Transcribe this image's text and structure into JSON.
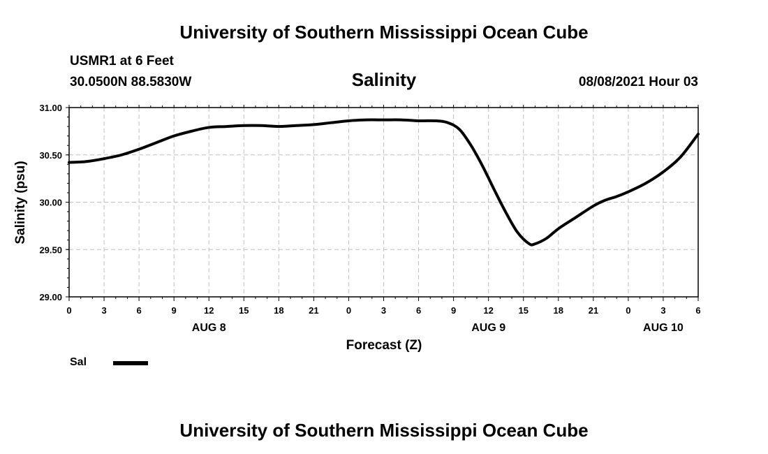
{
  "header": {
    "title": "University of Southern Mississippi Ocean Cube",
    "station": "USMR1 at 6 Feet",
    "coords": "30.0500N  88.5830W",
    "date": "08/08/2021 Hour 03"
  },
  "footer": {
    "title": "University of Southern Mississippi Ocean Cube"
  },
  "colors": {
    "line": "#000000",
    "grid": "#c0c0c0"
  },
  "chart_data": {
    "type": "line",
    "title": "Salinity",
    "xlabel": "Forecast (Z)",
    "ylabel": "Salinity (psu)",
    "ylim": [
      29.0,
      31.0
    ],
    "xlim": [
      0,
      54
    ],
    "grid": true,
    "y_ticks": [
      29.0,
      29.5,
      30.0,
      30.5,
      31.0
    ],
    "y_tick_labels": [
      "29.00",
      "29.50",
      "30.00",
      "30.50",
      "31.00"
    ],
    "x_ticks": [
      0,
      3,
      6,
      9,
      12,
      15,
      18,
      21,
      24,
      27,
      30,
      33,
      36,
      39,
      42,
      45,
      48,
      51,
      54
    ],
    "x_tick_labels": [
      "0",
      "3",
      "6",
      "9",
      "12",
      "15",
      "18",
      "21",
      "0",
      "3",
      "6",
      "9",
      "12",
      "15",
      "18",
      "21",
      "0",
      "3",
      "6"
    ],
    "day_labels": [
      {
        "x": 12,
        "label": "AUG 8"
      },
      {
        "x": 36,
        "label": "AUG 9"
      },
      {
        "x": 51,
        "label": "AUG 10"
      }
    ],
    "legend_position": "bottom-left",
    "series": [
      {
        "name": "Sal",
        "x": [
          0,
          1.5,
          3,
          4.5,
          6,
          7.5,
          9,
          10.5,
          12,
          13.5,
          15,
          16.5,
          18,
          19.5,
          21,
          22.5,
          24,
          25.5,
          27,
          28.5,
          30,
          31.5,
          32.5,
          33.5,
          34.5,
          35.5,
          36.5,
          37.5,
          38.5,
          39.5,
          40,
          41,
          42,
          43.5,
          45,
          46,
          47,
          48,
          49.5,
          51,
          52.5,
          54
        ],
        "y": [
          30.42,
          30.43,
          30.46,
          30.5,
          30.56,
          30.63,
          30.7,
          30.75,
          30.79,
          30.8,
          30.81,
          30.81,
          30.8,
          30.81,
          30.82,
          30.84,
          30.86,
          30.87,
          30.87,
          30.87,
          30.86,
          30.86,
          30.84,
          30.77,
          30.6,
          30.38,
          30.13,
          29.89,
          29.68,
          29.56,
          29.56,
          29.62,
          29.72,
          29.84,
          29.96,
          30.02,
          30.06,
          30.11,
          30.2,
          30.32,
          30.48,
          30.72
        ]
      }
    ]
  }
}
